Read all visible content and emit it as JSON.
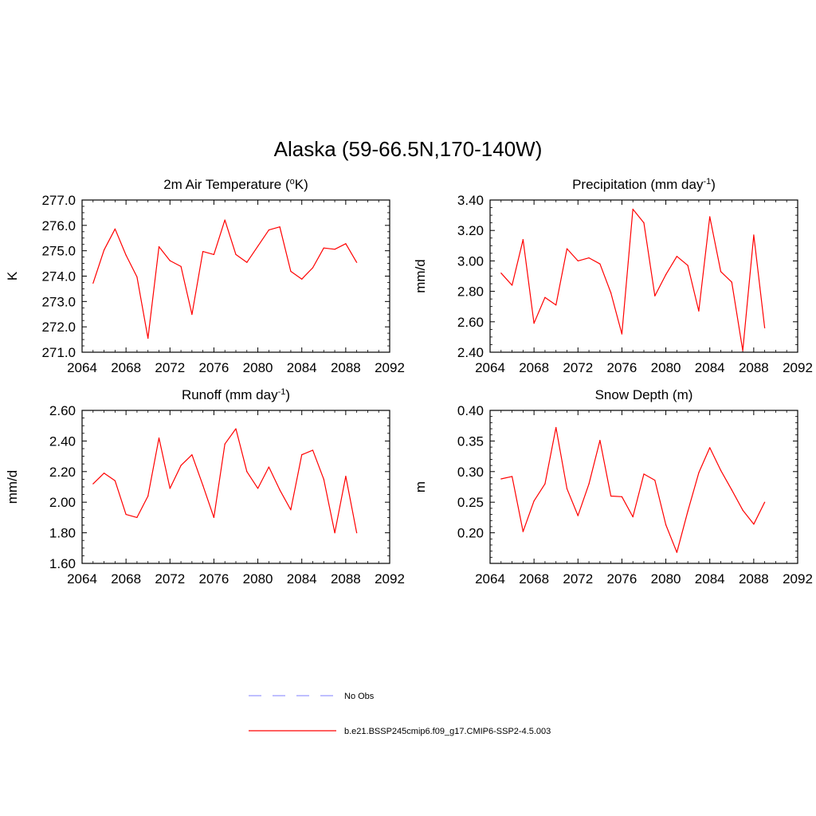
{
  "figure": {
    "title": "Alaska (59-66.5N,170-140W)"
  },
  "legend": {
    "items": [
      {
        "label": "No Obs",
        "color": "#9999ff",
        "dash": true
      },
      {
        "label": "b.e21.BSSP245cmip6.f09_g17.CMIP6-SSP2-4.5.003",
        "color": "#ff0000",
        "dash": false
      }
    ]
  },
  "chart_data": [
    {
      "type": "line",
      "title_main": "2m Air Temperature (",
      "title_sup": "o",
      "title_end": "K)",
      "ylabel": "K",
      "xlim": [
        2064,
        2092
      ],
      "ylim": [
        271.0,
        277.0
      ],
      "xticks": [
        2064,
        2068,
        2072,
        2076,
        2080,
        2084,
        2088,
        2092
      ],
      "xtick_labels": [
        "2064",
        "2068",
        "2072",
        "2076",
        "2080",
        "2084",
        "2088",
        "2092"
      ],
      "yticks": [
        271.0,
        272.0,
        273.0,
        274.0,
        275.0,
        276.0,
        277.0
      ],
      "ytick_labels": [
        "271.0",
        "272.0",
        "273.0",
        "274.0",
        "275.0",
        "276.0",
        "277.0"
      ],
      "color": "#ff0000",
      "x": [
        2065,
        2066,
        2067,
        2068,
        2069,
        2070,
        2071,
        2072,
        2073,
        2074,
        2075,
        2076,
        2077,
        2078,
        2079,
        2080,
        2081,
        2082,
        2083,
        2084,
        2085,
        2086,
        2087,
        2088,
        2089
      ],
      "y": [
        273.72,
        275.03,
        275.86,
        274.83,
        273.97,
        271.55,
        275.16,
        274.61,
        274.38,
        272.49,
        274.97,
        274.85,
        276.21,
        274.85,
        274.54,
        275.18,
        275.82,
        275.94,
        274.19,
        273.88,
        274.33,
        275.11,
        275.06,
        275.28,
        274.54
      ]
    },
    {
      "type": "line",
      "title_main": "Precipitation (mm day",
      "title_sup": "-1",
      "title_end": ")",
      "ylabel": "mm/d",
      "xlim": [
        2064,
        2092
      ],
      "ylim": [
        2.4,
        3.4
      ],
      "xticks": [
        2064,
        2068,
        2072,
        2076,
        2080,
        2084,
        2088,
        2092
      ],
      "xtick_labels": [
        "2064",
        "2068",
        "2072",
        "2076",
        "2080",
        "2084",
        "2088",
        "2092"
      ],
      "yticks": [
        2.4,
        2.6,
        2.8,
        3.0,
        3.2,
        3.4
      ],
      "ytick_labels": [
        "2.40",
        "2.60",
        "2.80",
        "3.00",
        "3.20",
        "3.40"
      ],
      "color": "#ff0000",
      "x": [
        2065,
        2066,
        2067,
        2068,
        2069,
        2070,
        2071,
        2072,
        2073,
        2074,
        2075,
        2076,
        2077,
        2078,
        2079,
        2080,
        2081,
        2082,
        2083,
        2084,
        2085,
        2086,
        2087,
        2088,
        2089
      ],
      "y": [
        2.92,
        2.84,
        3.14,
        2.59,
        2.76,
        2.71,
        3.08,
        3.0,
        3.02,
        2.98,
        2.79,
        2.52,
        3.34,
        3.25,
        2.77,
        2.91,
        3.03,
        2.97,
        2.67,
        3.29,
        2.93,
        2.86,
        2.41,
        3.17,
        2.56
      ]
    },
    {
      "type": "line",
      "title_main": "Runoff (mm day",
      "title_sup": "-1",
      "title_end": ")",
      "ylabel": "mm/d",
      "xlim": [
        2064,
        2092
      ],
      "ylim": [
        1.6,
        2.6
      ],
      "xticks": [
        2064,
        2068,
        2072,
        2076,
        2080,
        2084,
        2088,
        2092
      ],
      "xtick_labels": [
        "2064",
        "2068",
        "2072",
        "2076",
        "2080",
        "2084",
        "2088",
        "2092"
      ],
      "yticks": [
        1.6,
        1.8,
        2.0,
        2.2,
        2.4,
        2.6
      ],
      "ytick_labels": [
        "1.60",
        "1.80",
        "2.00",
        "2.20",
        "2.40",
        "2.60"
      ],
      "color": "#ff0000",
      "x": [
        2065,
        2066,
        2067,
        2068,
        2069,
        2070,
        2071,
        2072,
        2073,
        2074,
        2075,
        2076,
        2077,
        2078,
        2079,
        2080,
        2081,
        2082,
        2083,
        2084,
        2085,
        2086,
        2087,
        2088,
        2089
      ],
      "y": [
        2.12,
        2.19,
        2.14,
        1.92,
        1.9,
        2.04,
        2.42,
        2.09,
        2.24,
        2.31,
        2.11,
        1.9,
        2.38,
        2.48,
        2.2,
        2.09,
        2.23,
        2.08,
        1.95,
        2.31,
        2.34,
        2.15,
        1.8,
        2.17,
        1.8
      ]
    },
    {
      "type": "line",
      "title_main": "Snow Depth (m)",
      "title_sup": "",
      "title_end": "",
      "ylabel": "m",
      "xlim": [
        2064,
        2092
      ],
      "ylim": [
        0.15,
        0.4
      ],
      "xticks": [
        2064,
        2068,
        2072,
        2076,
        2080,
        2084,
        2088,
        2092
      ],
      "xtick_labels": [
        "2064",
        "2068",
        "2072",
        "2076",
        "2080",
        "2084",
        "2088",
        "2092"
      ],
      "yticks": [
        0.2,
        0.25,
        0.3,
        0.35,
        0.4
      ],
      "ytick_labels": [
        "0.20",
        "0.25",
        "0.30",
        "0.35",
        "0.40"
      ],
      "color": "#ff0000",
      "x": [
        2065,
        2066,
        2067,
        2068,
        2069,
        2070,
        2071,
        2072,
        2073,
        2074,
        2075,
        2076,
        2077,
        2078,
        2079,
        2080,
        2081,
        2082,
        2083,
        2084,
        2085,
        2086,
        2087,
        2088,
        2089
      ],
      "y": [
        0.288,
        0.292,
        0.202,
        0.252,
        0.28,
        0.372,
        0.272,
        0.228,
        0.28,
        0.351,
        0.26,
        0.259,
        0.226,
        0.296,
        0.286,
        0.213,
        0.168,
        0.235,
        0.298,
        0.339,
        0.302,
        0.27,
        0.237,
        0.214,
        0.25
      ]
    }
  ]
}
